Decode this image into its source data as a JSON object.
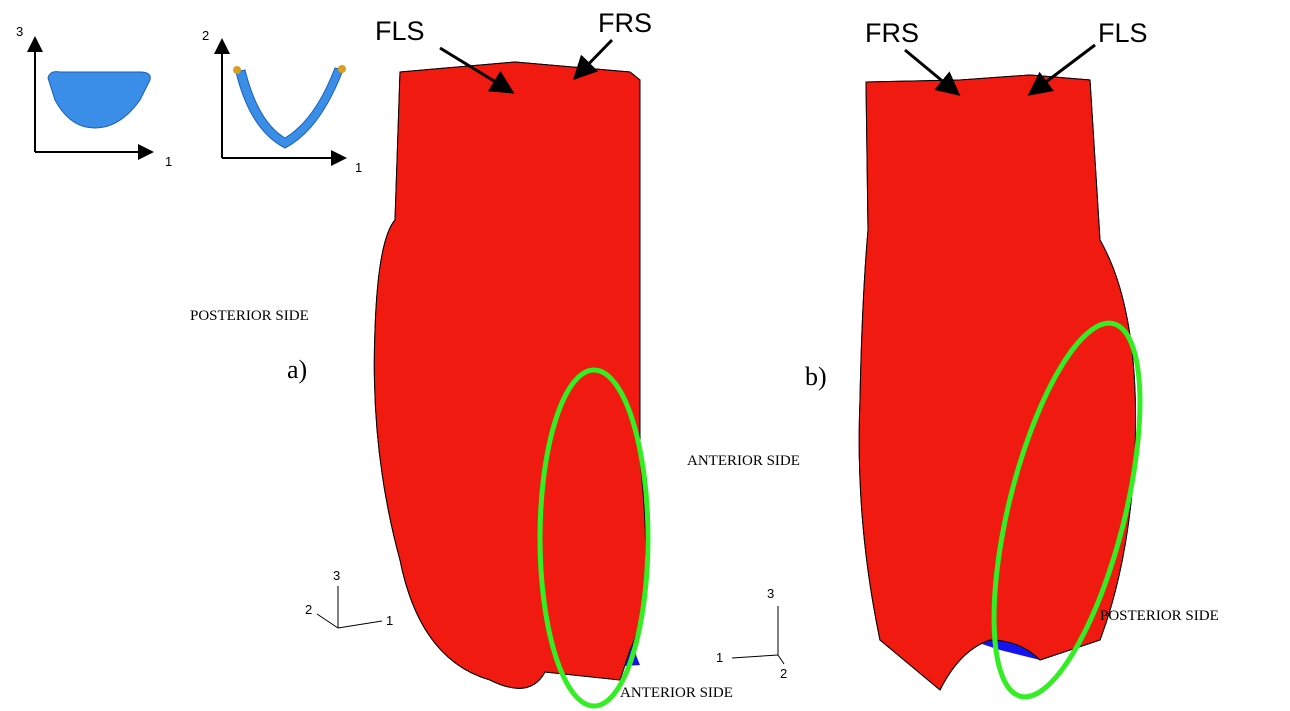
{
  "insets": [
    {
      "axes": [
        "3",
        "1"
      ]
    },
    {
      "axes": [
        "2",
        "1"
      ]
    }
  ],
  "panel_a": {
    "label": "a)",
    "top_labels": [
      "FLS",
      "FRS"
    ],
    "side_labels": [
      "POSTERIOR SIDE",
      "ANTERIOR SIDE"
    ],
    "triad": [
      "3",
      "2",
      "1"
    ]
  },
  "panel_b": {
    "label": "b)",
    "top_labels": [
      "FRS",
      "FLS"
    ],
    "side_labels": [
      "ANTERIOR SIDE",
      "POSTERIOR SIDE"
    ],
    "triad": [
      "3",
      "1",
      "2"
    ]
  }
}
